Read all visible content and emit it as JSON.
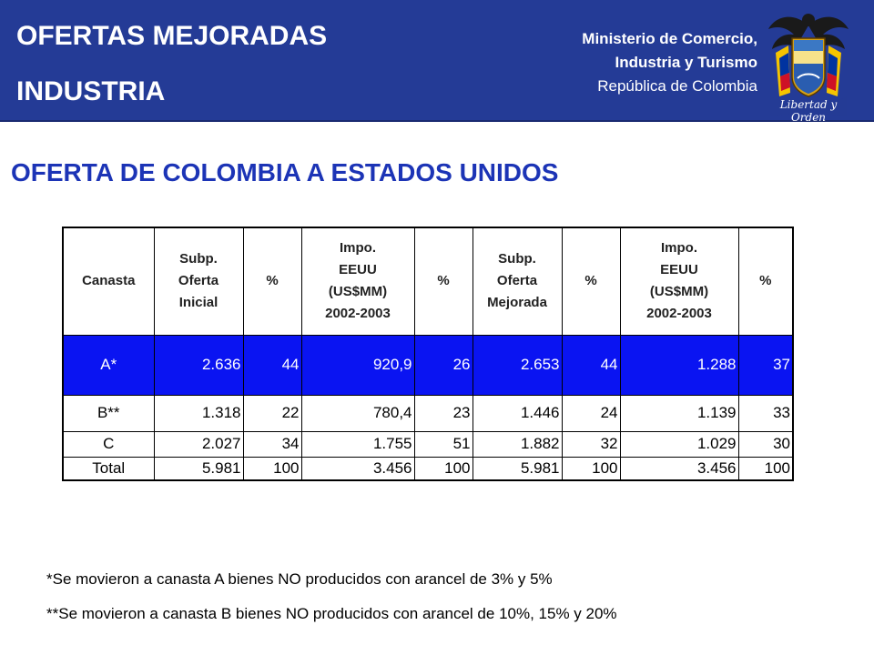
{
  "header": {
    "title_line1": "OFERTAS MEJORADAS",
    "title_line2": "INDUSTRIA",
    "ministry_line1": "Ministerio de Comercio,",
    "ministry_line2": "Industria y Turismo",
    "ministry_line3": "República de Colombia",
    "crest_motto": "Libertad y Orden",
    "bg_color": "#243b96"
  },
  "subtitle": "OFERTA DE COLOMBIA A ESTADOS UNIDOS",
  "table": {
    "headers": [
      [
        "Canasta"
      ],
      [
        "Subp.",
        "Oferta",
        "Inicial"
      ],
      [
        "%"
      ],
      [
        "Impo.",
        "EEUU",
        "(US$MM)",
        "2002-2003"
      ],
      [
        "%"
      ],
      [
        "Subp.",
        "Oferta",
        "Mejorada"
      ],
      [
        "%"
      ],
      [
        "Impo.",
        "EEUU",
        "(US$MM)",
        "2002-2003"
      ],
      [
        "%"
      ]
    ],
    "rows": [
      [
        "A*",
        "2.636",
        "44",
        "920,9",
        "26",
        "2.653",
        "44",
        "1.288",
        "37"
      ],
      [
        "B**",
        "1.318",
        "22",
        "780,4",
        "23",
        "1.446",
        "24",
        "1.139",
        "33"
      ],
      [
        "C",
        "2.027",
        "34",
        "1.755",
        "51",
        "1.882",
        "32",
        "1.029",
        "30"
      ],
      [
        "Total",
        "5.981",
        "100",
        "3.456",
        "100",
        "5.981",
        "100",
        "3.456",
        "100"
      ]
    ],
    "highlight_color": "#0a14f2"
  },
  "notes": [
    "*Se movieron a canasta A bienes NO producidos con arancel de 3% y 5%",
    "**Se movieron a canasta B bienes NO producidos con arancel de 10%, 15% y 20%"
  ]
}
